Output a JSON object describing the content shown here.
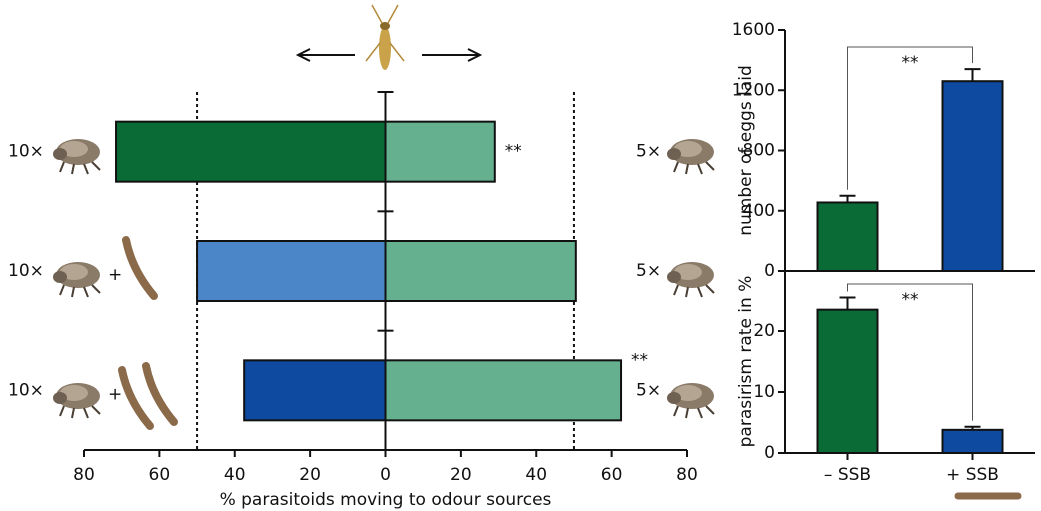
{
  "chart_data": [
    {
      "type": "diverging_bar",
      "left_labels": [
        "10×",
        "10×",
        "10×"
      ],
      "plus_labels": [
        null,
        "+",
        "+"
      ],
      "right_labels": [
        "5×",
        "5×",
        "5×"
      ],
      "series": [
        {
          "colors": [
            "#0a6b36",
            "#4a86c8",
            "#0d4aa0"
          ],
          "values": [
            -71.5,
            -50,
            -37.5
          ]
        },
        {
          "colors": [
            "#65b08f",
            "#65b08f",
            "#65b08f"
          ],
          "values": [
            29,
            50.5,
            62.5
          ]
        }
      ],
      "annotations": [
        "**",
        null,
        "**"
      ],
      "xlim": [
        -80,
        80
      ],
      "xticks": [
        {
          "value": -80,
          "label": "80"
        },
        {
          "value": -60,
          "label": "60"
        },
        {
          "value": -40,
          "label": "40"
        },
        {
          "value": -20,
          "label": "20"
        },
        0,
        20,
        40,
        60,
        80
      ],
      "reference_lines": [
        -50,
        50
      ],
      "xlabel": "% parasitoids moving to odour sources"
    },
    {
      "type": "bar",
      "categories": [
        "– SSB",
        "+ SSB"
      ],
      "colors": [
        "#0a6b36",
        "#0d4aa0"
      ],
      "values": [
        455,
        1260
      ],
      "errors": [
        45,
        80
      ],
      "ylim": [
        0,
        1600
      ],
      "yticks": [
        0,
        400,
        800,
        1200,
        1600
      ],
      "ylabel": "number of eggs laid",
      "annotation": "**"
    },
    {
      "type": "bar",
      "categories": [
        "– SSB",
        "+ SSB"
      ],
      "colors": [
        "#0a6b36",
        "#0d4aa0"
      ],
      "values": [
        23.5,
        3.8
      ],
      "errors": [
        2,
        0.5
      ],
      "ylim": [
        0,
        30
      ],
      "yticks": [
        0,
        10,
        20
      ],
      "ylabel": "parasirism rate in %",
      "annotation": "**"
    }
  ]
}
